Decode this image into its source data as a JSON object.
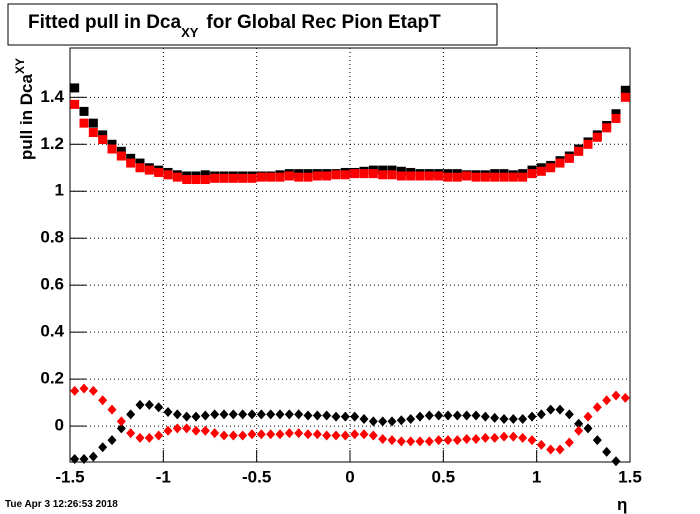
{
  "chart_data": {
    "type": "scatter",
    "title": {
      "main": "Fitted pull in Dca",
      "sub": "XY",
      "rest": "for Global Rec Pion EtapT"
    },
    "y_label": {
      "main": "pull in Dca",
      "sub": "XY"
    },
    "x_label": "η",
    "timestamp": "Tue Apr  3 12:26:53 2018",
    "x": [
      -1.475,
      -1.425,
      -1.375,
      -1.325,
      -1.275,
      -1.225,
      -1.175,
      -1.125,
      -1.075,
      -1.025,
      -0.975,
      -0.925,
      -0.875,
      -0.825,
      -0.775,
      -0.725,
      -0.675,
      -0.625,
      -0.575,
      -0.525,
      -0.475,
      -0.425,
      -0.375,
      -0.325,
      -0.275,
      -0.225,
      -0.175,
      -0.125,
      -0.075,
      -0.025,
      0.025,
      0.075,
      0.125,
      0.175,
      0.225,
      0.275,
      0.325,
      0.375,
      0.425,
      0.475,
      0.525,
      0.575,
      0.625,
      0.675,
      0.725,
      0.775,
      0.825,
      0.875,
      0.925,
      0.975,
      1.025,
      1.075,
      1.125,
      1.175,
      1.225,
      1.275,
      1.325,
      1.375,
      1.425,
      1.475
    ],
    "series": [
      {
        "color": "#000000",
        "marker": "square",
        "values": [
          1.44,
          1.34,
          1.29,
          1.24,
          1.2,
          1.17,
          1.14,
          1.12,
          1.1,
          1.09,
          1.08,
          1.07,
          1.065,
          1.065,
          1.07,
          1.065,
          1.065,
          1.065,
          1.065,
          1.065,
          1.065,
          1.065,
          1.07,
          1.075,
          1.075,
          1.075,
          1.075,
          1.075,
          1.075,
          1.08,
          1.08,
          1.085,
          1.09,
          1.09,
          1.09,
          1.085,
          1.08,
          1.075,
          1.075,
          1.075,
          1.075,
          1.075,
          1.07,
          1.07,
          1.07,
          1.075,
          1.075,
          1.07,
          1.075,
          1.09,
          1.1,
          1.11,
          1.13,
          1.15,
          1.18,
          1.21,
          1.24,
          1.28,
          1.33,
          1.43
        ]
      },
      {
        "color": "#ff0000",
        "marker": "square",
        "values": [
          1.37,
          1.29,
          1.25,
          1.22,
          1.18,
          1.15,
          1.12,
          1.1,
          1.09,
          1.08,
          1.07,
          1.06,
          1.05,
          1.05,
          1.05,
          1.055,
          1.055,
          1.055,
          1.055,
          1.055,
          1.06,
          1.06,
          1.06,
          1.065,
          1.06,
          1.06,
          1.065,
          1.065,
          1.07,
          1.07,
          1.075,
          1.075,
          1.075,
          1.07,
          1.07,
          1.065,
          1.065,
          1.065,
          1.065,
          1.065,
          1.06,
          1.06,
          1.065,
          1.06,
          1.06,
          1.06,
          1.06,
          1.06,
          1.06,
          1.075,
          1.085,
          1.1,
          1.12,
          1.14,
          1.17,
          1.2,
          1.23,
          1.27,
          1.31,
          1.4
        ]
      },
      {
        "color": "#000000",
        "marker": "diamond",
        "values": [
          -0.14,
          -0.14,
          -0.13,
          -0.09,
          -0.06,
          -0.01,
          0.05,
          0.09,
          0.09,
          0.08,
          0.06,
          0.05,
          0.04,
          0.04,
          0.045,
          0.05,
          0.05,
          0.05,
          0.05,
          0.05,
          0.05,
          0.05,
          0.05,
          0.05,
          0.05,
          0.045,
          0.045,
          0.045,
          0.04,
          0.04,
          0.04,
          0.03,
          0.02,
          0.02,
          0.02,
          0.025,
          0.03,
          0.04,
          0.045,
          0.045,
          0.045,
          0.045,
          0.045,
          0.045,
          0.04,
          0.035,
          0.03,
          0.03,
          0.03,
          0.04,
          0.05,
          0.07,
          0.07,
          0.05,
          0.01,
          -0.01,
          -0.06,
          -0.11,
          -0.15,
          null
        ]
      },
      {
        "color": "#ff0000",
        "marker": "diamond",
        "values": [
          0.15,
          0.16,
          0.15,
          0.11,
          0.07,
          0.02,
          -0.03,
          -0.05,
          -0.05,
          -0.04,
          -0.02,
          -0.01,
          -0.01,
          -0.02,
          -0.02,
          -0.03,
          -0.04,
          -0.04,
          -0.04,
          -0.035,
          -0.035,
          -0.035,
          -0.035,
          -0.03,
          -0.03,
          -0.035,
          -0.035,
          -0.04,
          -0.04,
          -0.04,
          -0.035,
          -0.035,
          -0.04,
          -0.055,
          -0.06,
          -0.065,
          -0.065,
          -0.065,
          -0.065,
          -0.06,
          -0.06,
          -0.06,
          -0.055,
          -0.055,
          -0.05,
          -0.05,
          -0.045,
          -0.045,
          -0.05,
          -0.06,
          -0.08,
          -0.1,
          -0.1,
          -0.07,
          -0.02,
          0.04,
          0.08,
          0.11,
          0.13,
          0.12
        ]
      }
    ],
    "xlim": [
      -1.5,
      1.5
    ],
    "ylim": [
      -0.153,
      1.61
    ],
    "xticks": [
      -1.5,
      -1,
      -0.5,
      0,
      0.5,
      1,
      1.5
    ],
    "yticks": [
      0,
      0.2,
      0.4,
      0.6,
      0.8,
      1,
      1.2,
      1.4
    ],
    "grid": true
  }
}
